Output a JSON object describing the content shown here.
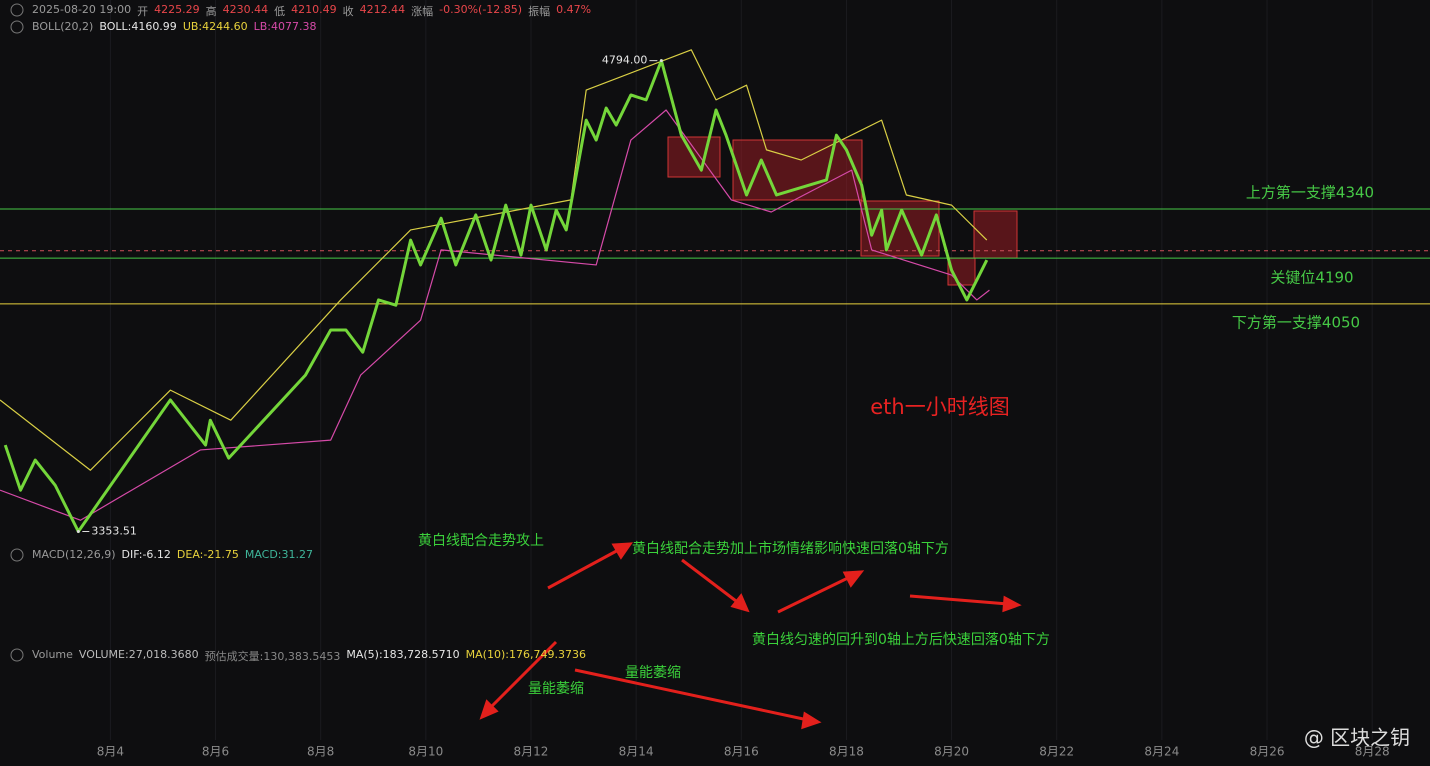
{
  "header": {
    "time": "2025-08-20 19:00",
    "items": [
      {
        "label": "开",
        "value": "4225.29"
      },
      {
        "label": "高",
        "value": "4230.44"
      },
      {
        "label": "低",
        "value": "4210.49"
      },
      {
        "label": "收",
        "value": "4212.44"
      },
      {
        "label": "涨幅",
        "value": "-0.30%(-12.85)"
      },
      {
        "label": "振幅",
        "value": "0.47%"
      }
    ]
  },
  "boll": {
    "name": "BOLL(20,2)",
    "items": [
      "BOLL:4160.99",
      "UB:4244.60",
      "LB:4077.38"
    ]
  },
  "macd": {
    "name": "MACD(12,26,9)",
    "items": [
      "DIF:-6.12",
      "DEA:-21.75",
      "MACD:31.27"
    ]
  },
  "volume": {
    "name": "Volume",
    "items": [
      "VOLUME:27,018.3680",
      "预估成交量:130,383.5453",
      "MA(5):183,728.5710",
      "MA(10):176,749.3736"
    ]
  },
  "chart_data": {
    "type": "line",
    "title": "eth一小时线图",
    "xlim": [
      1.9,
      29.1
    ],
    "ylim": [
      3300,
      4900
    ],
    "xticks": [
      {
        "value": 4,
        "label": "8月4"
      },
      {
        "value": 6,
        "label": "8月6"
      },
      {
        "value": 8,
        "label": "8月8"
      },
      {
        "value": 10,
        "label": "8月10"
      },
      {
        "value": 12,
        "label": "8月12"
      },
      {
        "value": 14,
        "label": "8月14"
      },
      {
        "value": 16,
        "label": "8月16"
      },
      {
        "value": 18,
        "label": "8月18"
      },
      {
        "value": 20,
        "label": "8月20"
      },
      {
        "value": 22,
        "label": "8月22"
      },
      {
        "value": 24,
        "label": "8月24"
      },
      {
        "value": 26,
        "label": "8月26"
      },
      {
        "value": 28,
        "label": "8月28"
      }
    ],
    "grid": true,
    "series": [
      {
        "color": "#d9cf45",
        "x": [
          1.9,
          3.62,
          5.14,
          6.29,
          8.38,
          9.71,
          12.76,
          13.05,
          15.05,
          15.52,
          16.1,
          16.48,
          17.14,
          18.67,
          19.14,
          20.0,
          20.67
        ],
        "values": [
          3756,
          3541,
          3786,
          3694,
          4062,
          4276,
          4368,
          4704,
          4827,
          4674,
          4719,
          4521,
          4490,
          4612,
          4383,
          4352,
          4245
        ]
      },
      {
        "color": "#d54aa8",
        "x": [
          1.9,
          3.43,
          5.71,
          8.19,
          8.76,
          9.9,
          10.29,
          13.24,
          13.9,
          14.57,
          15.81,
          16.57,
          18.1,
          18.48,
          20.0,
          20.48,
          20.72
        ],
        "values": [
          3480,
          3388,
          3603,
          3633,
          3832,
          4000,
          4215,
          4169,
          4551,
          4643,
          4368,
          4331,
          4459,
          4215,
          4138,
          4062,
          4092
        ]
      },
      {
        "color": "#74d63a",
        "x": [
          2.0,
          2.29,
          2.57,
          2.95,
          3.39,
          5.14,
          5.81,
          5.9,
          6.25,
          7.71,
          8.19,
          8.48,
          8.8,
          9.1,
          9.43,
          9.71,
          9.9,
          10.29,
          10.57,
          10.95,
          11.24,
          11.52,
          11.81,
          12.0,
          12.29,
          12.48,
          12.67,
          13.05,
          13.24,
          13.43,
          13.62,
          13.9,
          14.19,
          14.48,
          14.86,
          15.24,
          15.52,
          15.71,
          16.1,
          16.38,
          16.67,
          17.62,
          17.81,
          18.0,
          18.29,
          18.48,
          18.67,
          18.76,
          19.05,
          19.43,
          19.71,
          20.0,
          20.29,
          20.67
        ],
        "values": [
          3618,
          3480,
          3572,
          3495,
          3353.51,
          3756,
          3618,
          3694,
          3578,
          3832,
          3970,
          3970,
          3902,
          4062,
          4046,
          4245,
          4169,
          4312,
          4169,
          4322,
          4184,
          4352,
          4199,
          4352,
          4215,
          4337,
          4276,
          4612,
          4551,
          4649,
          4597,
          4689,
          4674,
          4794,
          4566,
          4459,
          4643,
          4566,
          4383,
          4490,
          4383,
          4429,
          4566,
          4521,
          4413,
          4260,
          4337,
          4215,
          4337,
          4199,
          4322,
          4153,
          4062,
          4184
        ]
      }
    ],
    "hlines": [
      {
        "value": 4340,
        "label": "上方第一支撑4340",
        "color": "#46c846"
      },
      {
        "value": 4190,
        "label": "关键位4190",
        "color": "#46c846"
      },
      {
        "value": 4050,
        "label": "下方第一支撑4050",
        "color": "#e8d23c"
      }
    ],
    "last_price": 4212.44,
    "extremes": [
      {
        "x": 14.48,
        "value": 4794,
        "label": "4794.00"
      },
      {
        "x": 3.39,
        "value": 3353.51,
        "label": "3353.51"
      }
    ]
  },
  "notes": [
    "黄白线配合走势攻上",
    "黄白线配合走势加上市场情绪影响快速回落0轴下方",
    "黄白线匀速的回升到0轴上方后快速回落0轴下方",
    "量能萎缩",
    "量能萎缩"
  ],
  "watermark": "@ 区块之钥"
}
